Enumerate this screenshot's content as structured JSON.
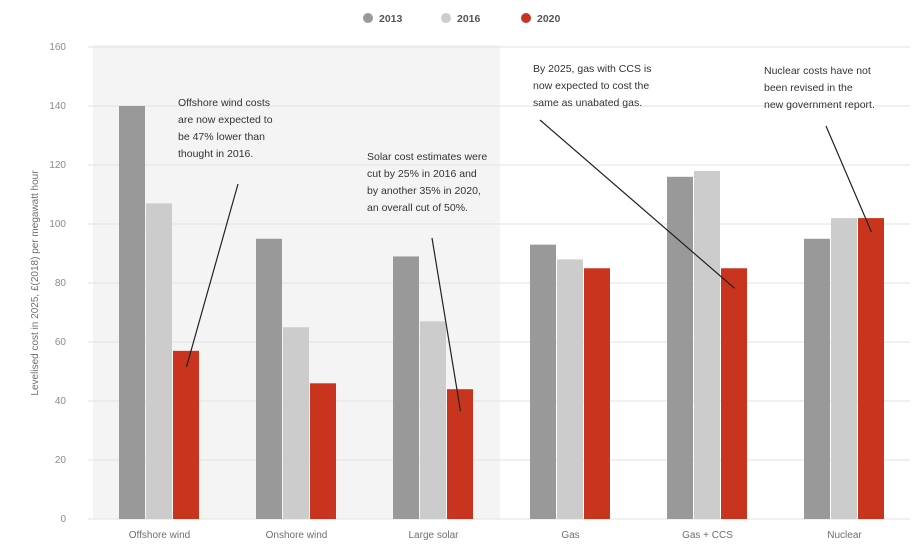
{
  "chart_data": {
    "type": "bar",
    "title": "",
    "xlabel": "",
    "ylabel": "Levelised cost in 2025, £(2018) per megawatt hour",
    "ylim": [
      0,
      160
    ],
    "yticks": [
      0,
      20,
      40,
      60,
      80,
      100,
      120,
      140,
      160
    ],
    "grid": true,
    "legend_position": "top",
    "categories": [
      "Offshore wind",
      "Onshore wind",
      "Large solar",
      "Gas",
      "Gas + CCS",
      "Nuclear"
    ],
    "series": [
      {
        "name": "2013",
        "color": "#999999",
        "values": [
          140,
          95,
          89,
          93,
          116,
          95
        ]
      },
      {
        "name": "2016",
        "color": "#cccccc",
        "values": [
          107,
          65,
          67,
          88,
          118,
          102
        ]
      },
      {
        "name": "2020",
        "color": "#c9341f",
        "values": [
          57,
          46,
          44,
          85,
          85,
          102
        ]
      }
    ],
    "annotations": [
      {
        "lines": [
          "Offshore wind costs",
          "are now expected to",
          "be 47% lower than",
          "thought in 2016."
        ],
        "target_category": "Offshore wind",
        "target_series": "2020"
      },
      {
        "lines": [
          "Solar cost estimates were",
          "cut by 25% in 2016 and",
          "by another 35% in 2020,",
          "an overall cut of 50%."
        ],
        "target_category": "Large solar",
        "target_series": "2020"
      },
      {
        "lines": [
          "By 2025, gas with CCS is",
          "now expected to cost the",
          "same as unabated gas."
        ],
        "target_category": "Gas + CCS",
        "target_series": "2020"
      },
      {
        "lines": [
          "Nuclear costs have not",
          "been revised in the",
          "new government report."
        ],
        "target_category": "Nuclear",
        "target_series": "2020"
      }
    ]
  }
}
